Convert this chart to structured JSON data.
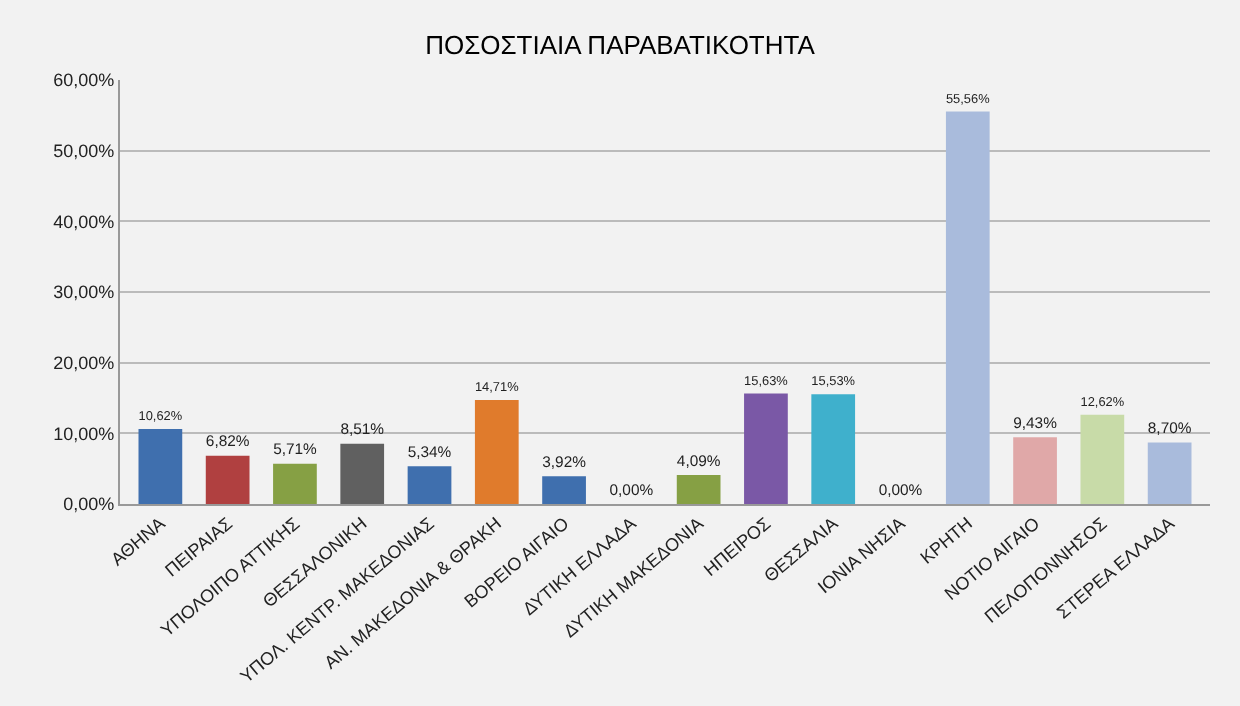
{
  "chart_data": {
    "type": "bar",
    "title": "ΠΟΣΟΣΤΙΑΙΑ ΠΑΡΑΒΑΤΙΚΟΤΗΤΑ",
    "categories": [
      "ΑΘΗΝΑ",
      "ΠΕΙΡΑΙΑΣ",
      "ΥΠΟΛΟΙΠΟ ΑΤΤΙΚΗΣ",
      "ΘΕΣΣΑΛΟΝΙΚΗ",
      "ΥΠΟΛ. ΚΕΝΤΡ. ΜΑΚΕΔΟΝΙΑΣ",
      "ΑΝ. ΜΑΚΕΔΟΝΙΑ & ΘΡΑΚΗ",
      "ΒΟΡΕΙΟ ΑΙΓΑΙΟ",
      "ΔΥΤΙΚΗ ΕΛΛΑΔΑ",
      "ΔΥΤΙΚΗ ΜΑΚΕΔΟΝΙΑ",
      "ΗΠΕΙΡΟΣ",
      "ΘΕΣΣΑΛΙΑ",
      "ΙΟΝΙΑ ΝΗΣΙΑ",
      "ΚΡΗΤΗ",
      "ΝΟΤΙΟ ΑΙΓΑΙΟ",
      "ΠΕΛΟΠΟΝΝΗΣΟΣ",
      "ΣΤΕΡΕΑ ΕΛΛΑΔΑ"
    ],
    "values": [
      10.62,
      6.82,
      5.71,
      8.51,
      5.34,
      14.71,
      3.92,
      0.0,
      4.09,
      15.63,
      15.53,
      0.0,
      55.56,
      9.43,
      12.62,
      8.7
    ],
    "value_labels": [
      "10,62%",
      "6,82%",
      "5,71%",
      "8,51%",
      "5,34%",
      "14,71%",
      "3,92%",
      "0,00%",
      "4,09%",
      "15,63%",
      "15,53%",
      "0,00%",
      "55,56%",
      "9,43%",
      "12,62%",
      "8,70%"
    ],
    "colors": [
      "#3f6fae",
      "#b04040",
      "#86a044",
      "#606060",
      "#3f6fae",
      "#e07b2c",
      "#3f6fae",
      "#b04040",
      "#86a044",
      "#7a58a6",
      "#3fb0cc",
      "#e07b2c",
      "#a9bbdc",
      "#e0a8a8",
      "#c8dba8",
      "#a9bbdc"
    ],
    "ylim": [
      0,
      60
    ],
    "yticks": [
      {
        "value": 0,
        "label": "0,00%"
      },
      {
        "value": 10,
        "label": "10,00%"
      },
      {
        "value": 20,
        "label": "20,00%"
      },
      {
        "value": 30,
        "label": "30,00%"
      },
      {
        "value": 40,
        "label": "40,00%"
      },
      {
        "value": 50,
        "label": "50,00%"
      },
      {
        "value": 60,
        "label": "60,00%"
      }
    ],
    "grid": "y"
  }
}
